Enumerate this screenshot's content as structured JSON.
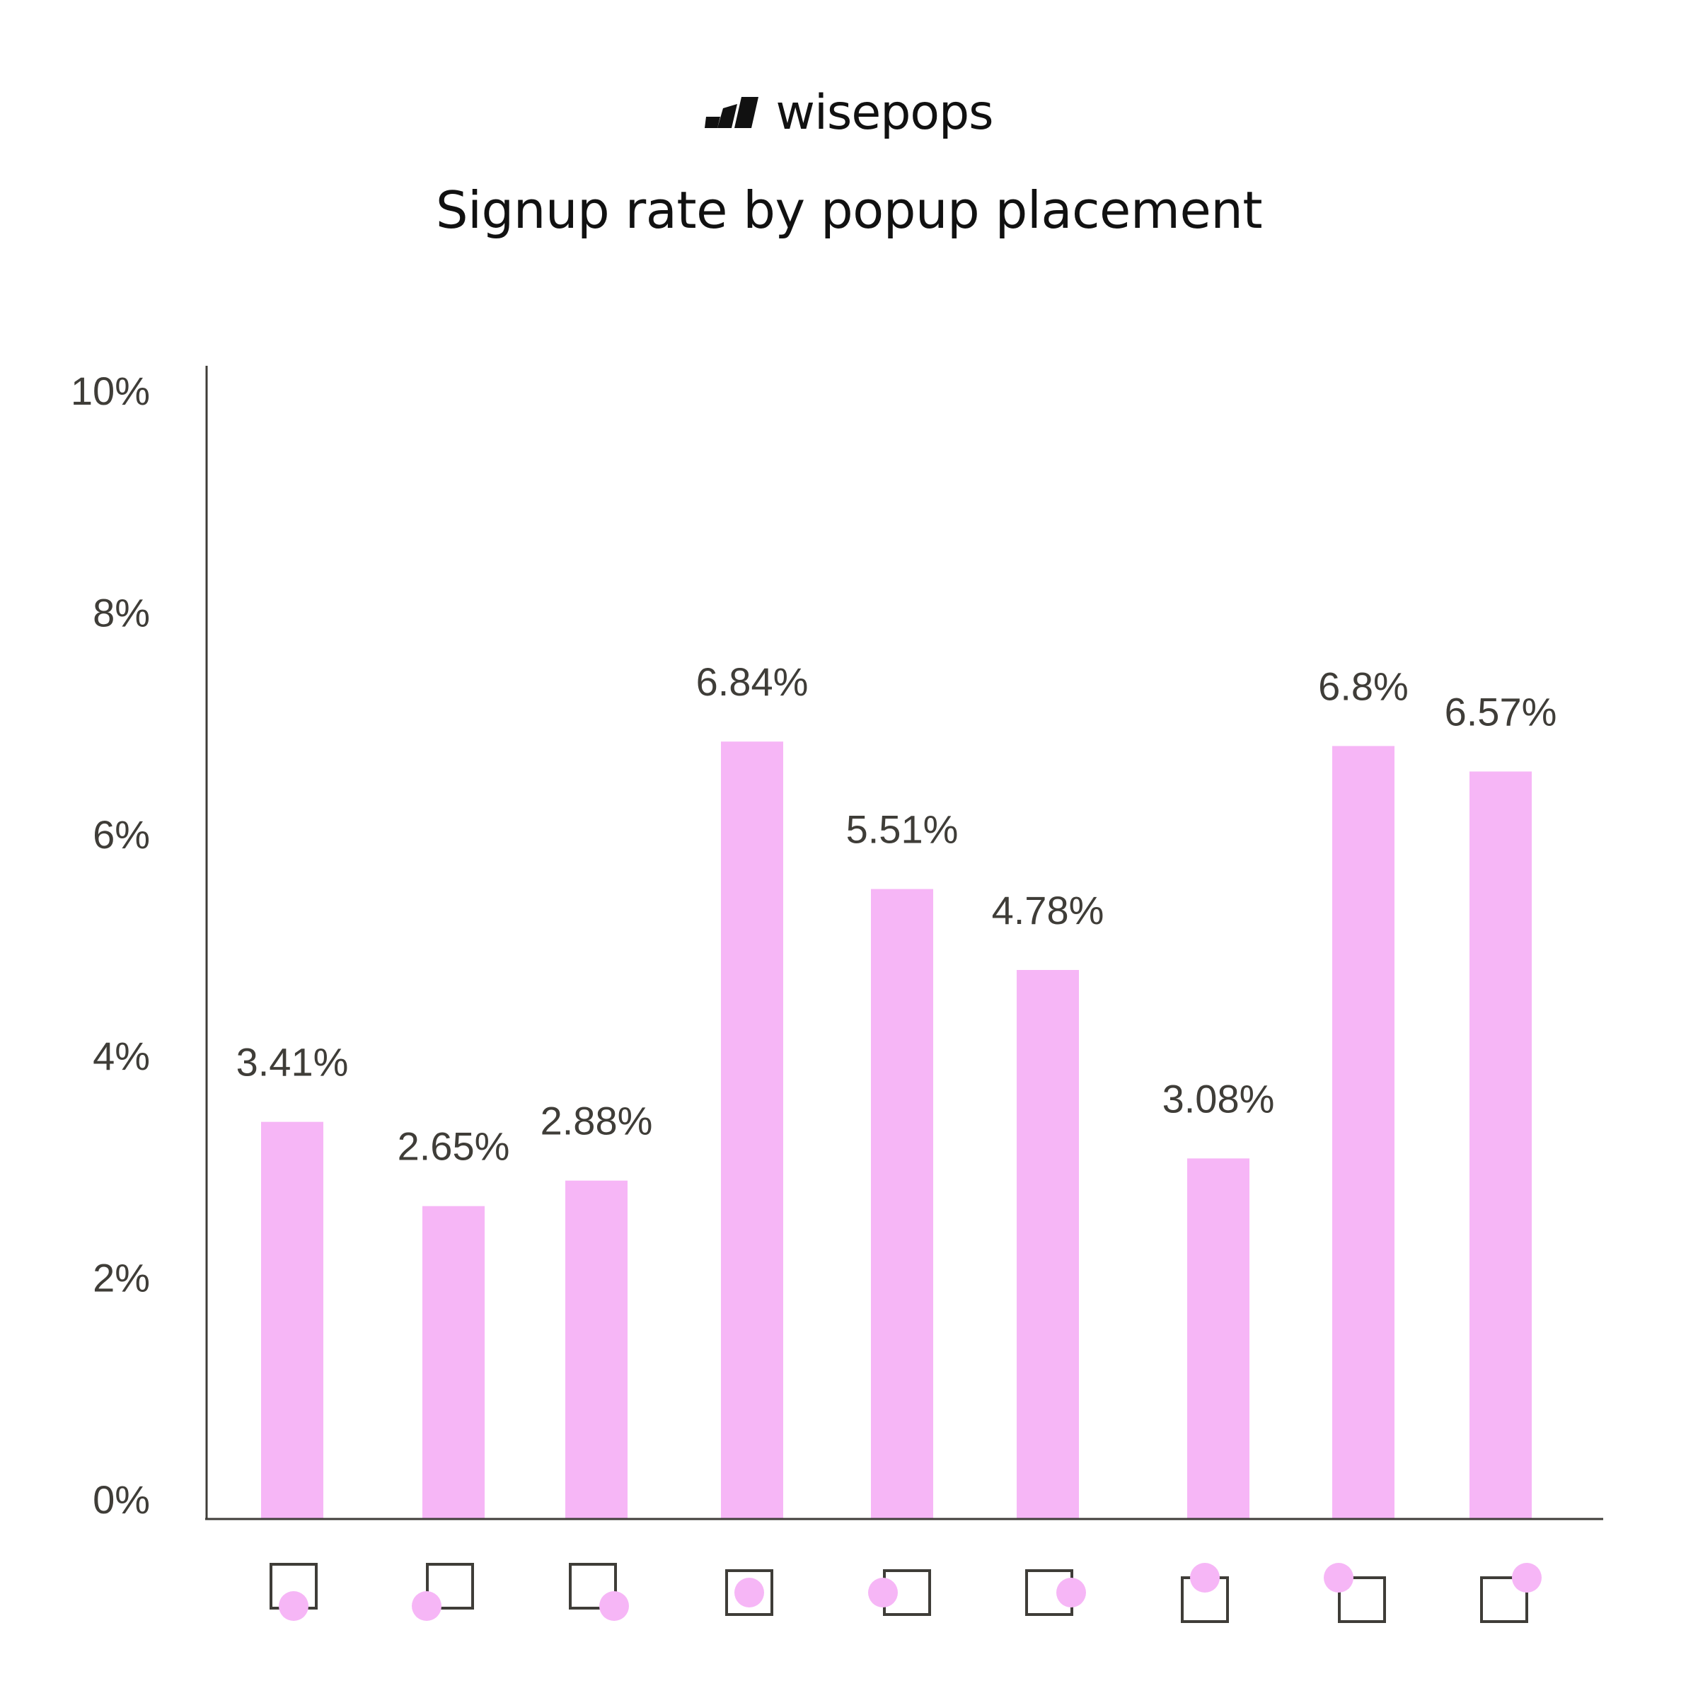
{
  "brand": {
    "name": "wisepops",
    "icon": "wisepops-logo-icon"
  },
  "chart_data": {
    "type": "bar",
    "title": "Signup rate by popup placement",
    "xlabel": "",
    "ylabel": "",
    "ylim": [
      0,
      10
    ],
    "yticks": [
      "10%",
      "8%",
      "6%",
      "4%",
      "2%",
      "0%"
    ],
    "categories": [
      "bottom-left",
      "bottom-left-outside",
      "bottom-right",
      "center",
      "left",
      "right",
      "top-left",
      "top-left-outside",
      "top-right"
    ],
    "category_icons": [
      "placement-bottom-left-icon",
      "placement-bottom-left-outside-icon",
      "placement-bottom-right-icon",
      "placement-center-icon",
      "placement-left-icon",
      "placement-right-icon",
      "placement-top-left-icon",
      "placement-top-left-outside-icon",
      "placement-top-right-icon"
    ],
    "values": [
      3.41,
      2.65,
      2.88,
      6.84,
      5.51,
      4.78,
      3.08,
      6.8,
      6.57
    ],
    "labels": [
      "3.41%",
      "2.65%",
      "2.88%",
      "6.84%",
      "5.51%",
      "4.78%",
      "3.08%",
      "6.8%",
      "6.57%"
    ],
    "bar_color": "#f6b6f6",
    "grid": false
  }
}
